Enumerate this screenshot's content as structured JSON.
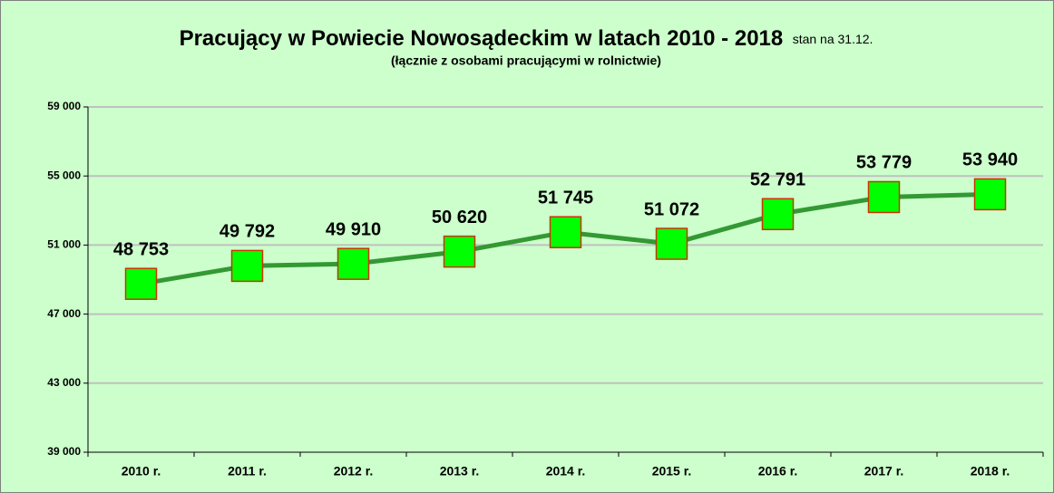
{
  "chart_data": {
    "type": "line",
    "title": "Pracujący  w Powiecie  Nowosądeckim w latach 2010 - 2018",
    "title_note": "stan na 31.12.",
    "subtitle": "(łącznie z osobami pracującymi w rolnictwie)",
    "categories": [
      "2010 r.",
      "2011 r.",
      "2012 r.",
      "2013 r.",
      "2014 r.",
      "2015 r.",
      "2016 r.",
      "2017 r.",
      "2018 r."
    ],
    "values": [
      48753,
      49792,
      49910,
      50620,
      51745,
      51072,
      52791,
      53779,
      53940
    ],
    "value_labels": [
      "48 753",
      "49 792",
      "49 910",
      "50 620",
      "51 745",
      "51 072",
      "52 791",
      "53 779",
      "53 940"
    ],
    "color": "#339933",
    "marker_color": "#00ff00",
    "marker_edge": "#cc3300",
    "ylim": [
      39000,
      59000
    ],
    "yticks": [
      {
        "value": 39000,
        "label": "39 000"
      },
      {
        "value": 43000,
        "label": "43 000"
      },
      {
        "value": 47000,
        "label": "47 000"
      },
      {
        "value": 51000,
        "label": "51 000"
      },
      {
        "value": 55000,
        "label": "55 000"
      },
      {
        "value": 59000,
        "label": "59 000"
      }
    ],
    "grid": true
  }
}
